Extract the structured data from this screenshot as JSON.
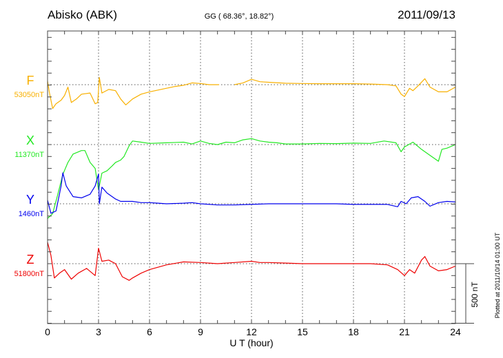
{
  "chart_data": {
    "type": "line",
    "title": "Abisko (ABK)",
    "subtitle": "GG ( 68.36°,  18.82°)",
    "date": "2011/09/13",
    "xlabel": "U T (hour)",
    "xlim": [
      0,
      24
    ],
    "xticks": [
      "0",
      "3",
      "6",
      "9",
      "12",
      "15",
      "18",
      "21",
      "24"
    ],
    "scale_label": "500 nT",
    "scale_nT": 500,
    "footer": "Plotted at 2011/10/14 01:00 UT",
    "grid": true,
    "series": [
      {
        "name": "F",
        "baseline_label": "53050nT",
        "color": "#f8b000",
        "points": [
          [
            0,
            30
          ],
          [
            0.1,
            -60
          ],
          [
            0.3,
            -200
          ],
          [
            0.5,
            -160
          ],
          [
            0.8,
            -130
          ],
          [
            1,
            -90
          ],
          [
            1.2,
            -20
          ],
          [
            1.4,
            -150
          ],
          [
            1.7,
            -120
          ],
          [
            2,
            -80
          ],
          [
            2.5,
            -70
          ],
          [
            2.8,
            -160
          ],
          [
            2.95,
            -150
          ],
          [
            3.05,
            60
          ],
          [
            3.2,
            -70
          ],
          [
            3.6,
            -40
          ],
          [
            4,
            -50
          ],
          [
            4.3,
            -120
          ],
          [
            4.6,
            -170
          ],
          [
            5,
            -120
          ],
          [
            5.5,
            -80
          ],
          [
            6,
            -60
          ],
          [
            6.5,
            -45
          ],
          [
            7,
            -30
          ],
          [
            7.5,
            -15
          ],
          [
            8,
            -5
          ],
          [
            8.5,
            15
          ],
          [
            9,
            10
          ],
          [
            9.5,
            0
          ],
          [
            10.1,
            0
          ],
          [
            10.1,
            null
          ],
          [
            11,
            null
          ],
          [
            11,
            0
          ],
          [
            11.5,
            15
          ],
          [
            12,
            45
          ],
          [
            12.5,
            25
          ],
          [
            13,
            20
          ],
          [
            14,
            12
          ],
          [
            15,
            10
          ],
          [
            16,
            8
          ],
          [
            17,
            8
          ],
          [
            18,
            8
          ],
          [
            19,
            5
          ],
          [
            20,
            0
          ],
          [
            20.5,
            -10
          ],
          [
            20.8,
            -80
          ],
          [
            21,
            -100
          ],
          [
            21.3,
            -30
          ],
          [
            21.5,
            -50
          ],
          [
            21.8,
            -10
          ],
          [
            22.2,
            50
          ],
          [
            22.5,
            -20
          ],
          [
            23,
            -60
          ],
          [
            23.5,
            -60
          ],
          [
            24,
            -20
          ]
        ]
      },
      {
        "name": "X",
        "baseline_label": "11370nT",
        "color": "#22e822",
        "points": [
          [
            0,
            -620
          ],
          [
            0.3,
            -580
          ],
          [
            0.6,
            -420
          ],
          [
            0.9,
            -250
          ],
          [
            1.2,
            -150
          ],
          [
            1.5,
            -80
          ],
          [
            2,
            -50
          ],
          [
            2.2,
            -50
          ],
          [
            2.5,
            -150
          ],
          [
            2.8,
            -200
          ],
          [
            3,
            -380
          ],
          [
            3.2,
            -240
          ],
          [
            3.5,
            -220
          ],
          [
            3.8,
            -180
          ],
          [
            4,
            -150
          ],
          [
            4.3,
            -130
          ],
          [
            4.5,
            -100
          ],
          [
            4.8,
            -10
          ],
          [
            5,
            30
          ],
          [
            5.5,
            20
          ],
          [
            6,
            10
          ],
          [
            7,
            15
          ],
          [
            8,
            20
          ],
          [
            8.5,
            5
          ],
          [
            9,
            30
          ],
          [
            9.5,
            10
          ],
          [
            10,
            0
          ],
          [
            10.5,
            20
          ],
          [
            11,
            15
          ],
          [
            11.5,
            40
          ],
          [
            12,
            50
          ],
          [
            12.5,
            30
          ],
          [
            13,
            20
          ],
          [
            13.5,
            15
          ],
          [
            14,
            5
          ],
          [
            15,
            5
          ],
          [
            16,
            10
          ],
          [
            17,
            8
          ],
          [
            18,
            12
          ],
          [
            19,
            10
          ],
          [
            19.8,
            30
          ],
          [
            20.5,
            15
          ],
          [
            20.8,
            -60
          ],
          [
            21,
            -20
          ],
          [
            21.5,
            20
          ],
          [
            22,
            -40
          ],
          [
            22.5,
            -90
          ],
          [
            23,
            -140
          ],
          [
            23.2,
            -40
          ],
          [
            23.5,
            -30
          ],
          [
            24,
            0
          ]
        ]
      },
      {
        "name": "Y",
        "baseline_label": "1460nT",
        "color": "#0000ee",
        "points": [
          [
            0,
            30
          ],
          [
            0.2,
            -80
          ],
          [
            0.5,
            -60
          ],
          [
            0.8,
            150
          ],
          [
            0.9,
            260
          ],
          [
            1.1,
            150
          ],
          [
            1.5,
            60
          ],
          [
            2,
            50
          ],
          [
            2.5,
            80
          ],
          [
            2.8,
            150
          ],
          [
            3,
            250
          ],
          [
            3.05,
            0
          ],
          [
            3.2,
            140
          ],
          [
            3.5,
            90
          ],
          [
            4,
            40
          ],
          [
            4.3,
            20
          ],
          [
            5,
            20
          ],
          [
            5.5,
            10
          ],
          [
            6,
            10
          ],
          [
            6.5,
            5
          ],
          [
            7,
            0
          ],
          [
            8,
            5
          ],
          [
            8.5,
            10
          ],
          [
            9,
            0
          ],
          [
            10,
            -10
          ],
          [
            11,
            -10
          ],
          [
            12,
            -5
          ],
          [
            13,
            0
          ],
          [
            14,
            0
          ],
          [
            15,
            0
          ],
          [
            16,
            0
          ],
          [
            17,
            0
          ],
          [
            18,
            -5
          ],
          [
            19,
            -5
          ],
          [
            20,
            -5
          ],
          [
            20.6,
            -25
          ],
          [
            20.8,
            20
          ],
          [
            21.1,
            0
          ],
          [
            21.4,
            50
          ],
          [
            21.8,
            60
          ],
          [
            22.2,
            20
          ],
          [
            22.5,
            -20
          ],
          [
            23,
            10
          ],
          [
            23.5,
            20
          ],
          [
            24,
            15
          ]
        ]
      },
      {
        "name": "Z",
        "baseline_label": "51800nT",
        "color": "#ee0000",
        "points": [
          [
            0,
            180
          ],
          [
            0.2,
            70
          ],
          [
            0.4,
            -120
          ],
          [
            0.7,
            -80
          ],
          [
            1,
            -50
          ],
          [
            1.4,
            -130
          ],
          [
            1.8,
            -80
          ],
          [
            2.3,
            -40
          ],
          [
            2.8,
            -100
          ],
          [
            3,
            130
          ],
          [
            3.2,
            20
          ],
          [
            3.6,
            30
          ],
          [
            4,
            0
          ],
          [
            4.4,
            -110
          ],
          [
            4.8,
            -140
          ],
          [
            5,
            -120
          ],
          [
            5.5,
            -80
          ],
          [
            6,
            -50
          ],
          [
            7,
            -10
          ],
          [
            8,
            15
          ],
          [
            9,
            10
          ],
          [
            10,
            0
          ],
          [
            11,
            10
          ],
          [
            12,
            20
          ],
          [
            12.5,
            10
          ],
          [
            13,
            10
          ],
          [
            14,
            5
          ],
          [
            15,
            0
          ],
          [
            16,
            0
          ],
          [
            17,
            0
          ],
          [
            18,
            0
          ],
          [
            19,
            0
          ],
          [
            20,
            -10
          ],
          [
            20.6,
            -50
          ],
          [
            21,
            -100
          ],
          [
            21.3,
            -50
          ],
          [
            21.6,
            -80
          ],
          [
            22,
            30
          ],
          [
            22.2,
            60
          ],
          [
            22.5,
            -20
          ],
          [
            23,
            -60
          ],
          [
            23.5,
            -50
          ],
          [
            24,
            -20
          ]
        ]
      }
    ]
  }
}
